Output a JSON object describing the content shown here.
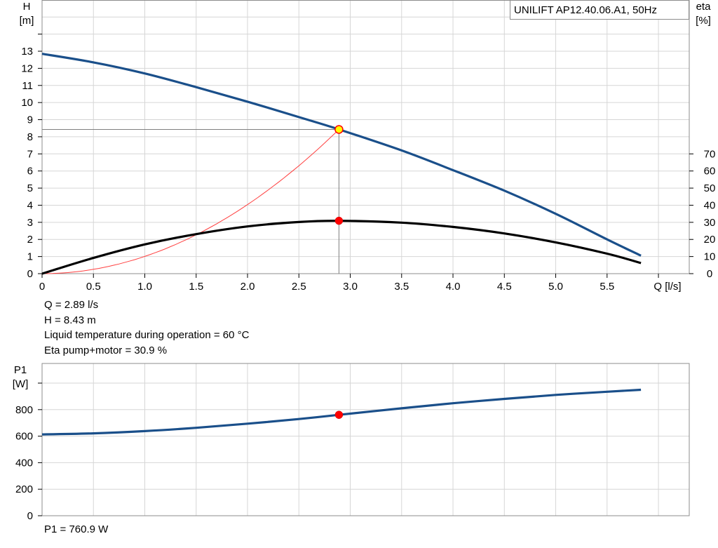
{
  "chart_data": [
    {
      "type": "line",
      "title": "UNILIFT AP12.40.06.A1, 50Hz",
      "ylabel": "H",
      "ylabel_unit": "[m]",
      "y2label": "eta",
      "y2label_unit": "[%]",
      "xlabel": "Q [l/s]",
      "xlim": [
        0,
        6.3
      ],
      "ylim": [
        0,
        14
      ],
      "y2lim": [
        0,
        70
      ],
      "x_ticks": [
        "0",
        "0.5",
        "1.0",
        "1.5",
        "2.0",
        "2.5",
        "3.0",
        "3.5",
        "4.0",
        "4.5",
        "5.0",
        "5.5"
      ],
      "y_ticks": [
        "0",
        "1",
        "2",
        "3",
        "4",
        "5",
        "6",
        "7",
        "8",
        "9",
        "10",
        "11",
        "12",
        "13"
      ],
      "y2_ticks": [
        "0",
        "10",
        "20",
        "30",
        "40",
        "50",
        "60",
        "70"
      ],
      "grid": true,
      "series": [
        {
          "color": "#1a4f8a",
          "axis": "left",
          "x": [
            0,
            0.5,
            1.0,
            1.5,
            2.0,
            2.5,
            2.89,
            3.5,
            4.0,
            4.5,
            5.0,
            5.5,
            5.83
          ],
          "y": [
            12.85,
            12.35,
            11.7,
            10.9,
            10.05,
            9.15,
            8.43,
            7.2,
            6.05,
            4.85,
            3.5,
            2.0,
            1.05
          ]
        },
        {
          "color": "#000000",
          "axis": "right",
          "x": [
            0,
            0.5,
            1.0,
            1.5,
            2.0,
            2.5,
            2.89,
            3.5,
            4.0,
            4.5,
            5.0,
            5.5,
            5.83
          ],
          "y": [
            0,
            9.2,
            17.1,
            23.1,
            27.6,
            30.2,
            30.9,
            29.8,
            27.3,
            23.5,
            18.3,
            11.7,
            6.2
          ]
        },
        {
          "color": "#ff4040",
          "axis": "left",
          "x": [
            0,
            0.5,
            1.0,
            1.5,
            2.0,
            2.5,
            2.89
          ],
          "y": [
            0,
            0.25,
            1.01,
            2.27,
            4.04,
            6.31,
            8.43
          ]
        }
      ],
      "operating_point": {
        "x": 2.89,
        "y": 8.43,
        "eta": 30.9
      }
    },
    {
      "type": "line",
      "ylabel": "P1",
      "ylabel_unit": "[W]",
      "xlim": [
        0,
        6.3
      ],
      "ylim": [
        0,
        1000
      ],
      "y_ticks": [
        "0",
        "200",
        "400",
        "600",
        "800"
      ],
      "grid": true,
      "series": [
        {
          "color": "#1a4f8a",
          "x": [
            0,
            0.5,
            1.0,
            1.5,
            2.0,
            2.5,
            2.89,
            3.5,
            4.0,
            4.5,
            5.0,
            5.5,
            5.83
          ],
          "y": [
            613,
            621,
            638,
            663,
            694,
            729,
            760.9,
            810,
            848,
            881,
            911,
            935,
            950
          ]
        }
      ],
      "operating_point": {
        "x": 2.89,
        "y": 760.9
      }
    }
  ],
  "info": {
    "q": "Q = 2.89 l/s",
    "h": "H = 8.43 m",
    "temp": "Liquid temperature during operation = 60 °C",
    "eta": "Eta pump+motor = 30.9 %",
    "p1": "P1 = 760.9 W"
  }
}
